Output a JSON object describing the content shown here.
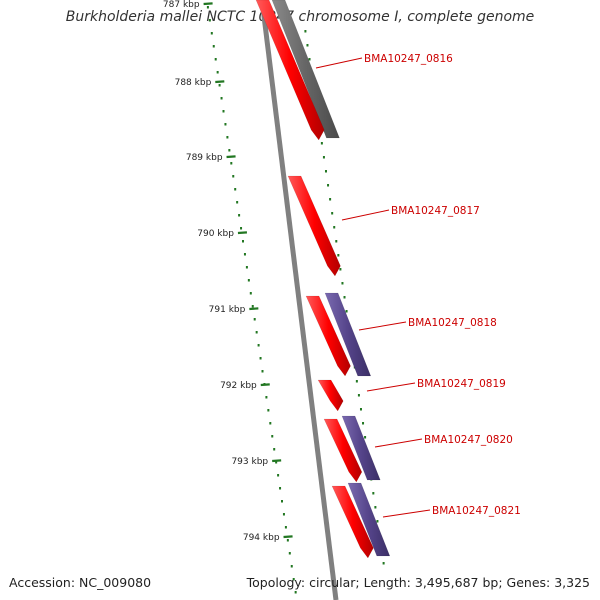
{
  "title": "Burkholderia mallei NCTC 10247 chromosome I, complete genome",
  "footer": {
    "accession": "Accession: NC_009080",
    "summary": "Topology: circular; Length: 3,495,687 bp; Genes: 3,325"
  },
  "colors": {
    "forward_gene": "#ff0000",
    "reverse_gene_gray": "#666666",
    "reverse_gene_purple": "#55448a",
    "backbone": "#808080",
    "tick": "#227722",
    "label": "#cc0000"
  },
  "ticks": [
    {
      "label": "787 kbp"
    },
    {
      "label": "788 kbp"
    },
    {
      "label": "789 kbp"
    },
    {
      "label": "790 kbp"
    },
    {
      "label": "791 kbp"
    },
    {
      "label": "792 kbp"
    },
    {
      "label": "793 kbp"
    },
    {
      "label": "794 kbp"
    }
  ],
  "genes": [
    {
      "label": "BMA10247_0816"
    },
    {
      "label": "BMA10247_0817"
    },
    {
      "label": "BMA10247_0818"
    },
    {
      "label": "BMA10247_0819"
    },
    {
      "label": "BMA10247_0820"
    },
    {
      "label": "BMA10247_0821"
    }
  ]
}
